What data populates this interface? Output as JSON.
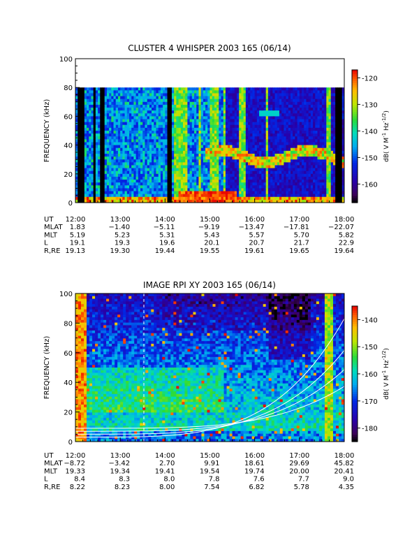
{
  "chart_data": [
    {
      "type": "heatmap",
      "title": "CLUSTER 4 WHISPER 2003 165 (06/14)",
      "ylabel": "FREQUENCY (kHz)",
      "ylim": [
        0,
        100
      ],
      "y_ticks": [
        "0",
        "20",
        "40",
        "60",
        "80",
        "100"
      ],
      "x_ticks": [
        "12:00",
        "13:00",
        "14:00",
        "15:00",
        "16:00",
        "17:00",
        "18:00"
      ],
      "colorbar": {
        "label": "dB( V M⁻¹ Hz⁻¹ᐟ²)",
        "label_text": "dB( V M",
        "label_sup1": "-1",
        "label_mid": " Hz",
        "label_sup2": "-1/2",
        "label_end": ")",
        "range": [
          -167,
          -117
        ],
        "ticks": [
          "-120",
          "-130",
          "-140",
          "-150",
          "-160"
        ],
        "tick_values": [
          -120,
          -130,
          -140,
          -150,
          -160
        ]
      },
      "ephemeris": {
        "row_labels": [
          "UT",
          "MLAT",
          "MLT",
          "L",
          "R,RE"
        ],
        "columns": [
          [
            "12:00",
            "1.83",
            "5.19",
            "19.1",
            "19.13"
          ],
          [
            "13:00",
            "−1.40",
            "5.23",
            "19.3",
            "19.30"
          ],
          [
            "14:00",
            "−5.11",
            "5.31",
            "19.6",
            "19.44"
          ],
          [
            "15:00",
            "−9.19",
            "5.43",
            "20.1",
            "19.55"
          ],
          [
            "16:00",
            "−13.47",
            "5.57",
            "20.7",
            "19.61"
          ],
          [
            "17:00",
            "−17.81",
            "5.70",
            "21.7",
            "19.65"
          ],
          [
            "18:00",
            "−22.07",
            "5.82",
            "22.9",
            "19.64"
          ]
        ]
      }
    },
    {
      "type": "heatmap",
      "title": "IMAGE RPI XY 2003 165 (06/14)",
      "ylabel": "FREQUENCY (kHz)",
      "ylim": [
        0,
        100
      ],
      "y_ticks": [
        "0",
        "20",
        "40",
        "60",
        "80",
        "100"
      ],
      "x_ticks": [
        "12:00",
        "13:00",
        "14:00",
        "15:00",
        "16:00",
        "17:00",
        "18:00"
      ],
      "colorbar": {
        "label_text": "dB( V M",
        "label_sup1": "-1",
        "label_mid": " Hz",
        "label_sup2": "-1/2",
        "label_end": ")",
        "range": [
          -185,
          -135
        ],
        "ticks": [
          "-140",
          "-150",
          "-160",
          "-170",
          "-180"
        ],
        "tick_values": [
          -140,
          -150,
          -160,
          -170,
          -180
        ]
      },
      "ephemeris": {
        "row_labels": [
          "UT",
          "MLAT",
          "MLT",
          "L",
          "R,RE"
        ],
        "columns": [
          [
            "12:00",
            "−8.72",
            "19.33",
            "8.4",
            "8.22"
          ],
          [
            "13:00",
            "−3.42",
            "19.34",
            "8.3",
            "8.23"
          ],
          [
            "14:00",
            "2.70",
            "19.41",
            "8.0",
            "8.00"
          ],
          [
            "15:00",
            "9.91",
            "19.54",
            "7.8",
            "7.54"
          ],
          [
            "16:00",
            "18.61",
            "19.74",
            "7.6",
            "6.82"
          ],
          [
            "17:00",
            "29.69",
            "20.00",
            "7.7",
            "5.78"
          ],
          [
            "18:00",
            "45.82",
            "20.41",
            "9.0",
            "4.35"
          ]
        ]
      }
    }
  ]
}
